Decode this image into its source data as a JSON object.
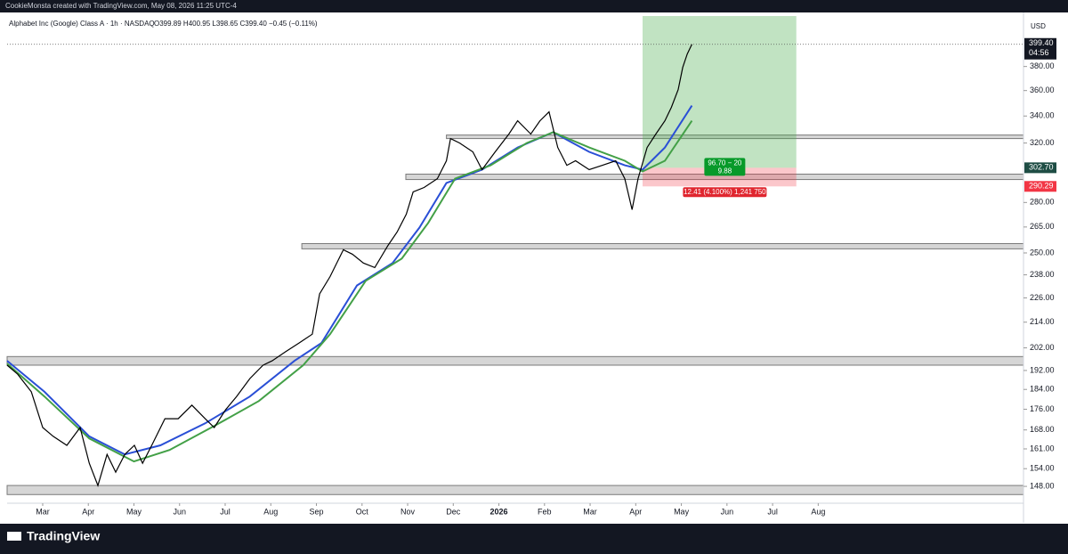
{
  "header": "CookieMonsta created with TradingView.com, May 08, 2026 11:25 UTC-4",
  "footer": "TradingView",
  "chart_data": {
    "type": "line",
    "symbol": "Alphabet Inc (Google) Class A · 1h · NASDAQ",
    "ohlc": "O399.89 H400.95 L398.65 C399.40 −0.45 (−0.11%)",
    "currency": "USD",
    "log_scale": true,
    "xlim": [
      -0.78,
      21.5
    ],
    "xticks": [
      {
        "value": 0,
        "label": "Mar"
      },
      {
        "value": 1,
        "label": "Apr"
      },
      {
        "value": 2,
        "label": "May"
      },
      {
        "value": 3,
        "label": "Jun"
      },
      {
        "value": 4,
        "label": "Jul"
      },
      {
        "value": 5,
        "label": "Aug"
      },
      {
        "value": 6,
        "label": "Sep"
      },
      {
        "value": 7,
        "label": "Oct"
      },
      {
        "value": 8,
        "label": "Nov"
      },
      {
        "value": 9,
        "label": "Dec"
      },
      {
        "value": 10,
        "label": "2026"
      },
      {
        "value": 11,
        "label": "Feb"
      },
      {
        "value": 12,
        "label": "Mar"
      },
      {
        "value": 13,
        "label": "Apr"
      },
      {
        "value": 14,
        "label": "May"
      },
      {
        "value": 15,
        "label": "Jun"
      },
      {
        "value": 16,
        "label": "Jul"
      },
      {
        "value": 17,
        "label": "Aug"
      }
    ],
    "ylim": [
      142.5,
      425.6
    ],
    "yticks": [
      {
        "value": 148,
        "label": "148.00"
      },
      {
        "value": 154,
        "label": "154.00"
      },
      {
        "value": 161,
        "label": "161.00"
      },
      {
        "value": 168,
        "label": "168.00"
      },
      {
        "value": 176,
        "label": "176.00"
      },
      {
        "value": 184,
        "label": "184.00"
      },
      {
        "value": 192,
        "label": "192.00"
      },
      {
        "value": 202,
        "label": "202.00"
      },
      {
        "value": 214,
        "label": "214.00"
      },
      {
        "value": 226,
        "label": "226.00"
      },
      {
        "value": 238,
        "label": "238.00"
      },
      {
        "value": 250,
        "label": "250.00"
      },
      {
        "value": 265,
        "label": "265.00"
      },
      {
        "value": 280,
        "label": "280.00"
      },
      {
        "value": 320,
        "label": "320.00"
      },
      {
        "value": 340,
        "label": "340.00"
      },
      {
        "value": 360,
        "label": "360.00"
      },
      {
        "value": 380,
        "label": "380.00"
      }
    ],
    "series": [
      {
        "color": "#000000",
        "width": 1.2,
        "x": [
          -0.78,
          -0.55,
          -0.25,
          0,
          0.23,
          0.53,
          0.82,
          1.02,
          1.21,
          1.41,
          1.6,
          1.8,
          2.01,
          2.19,
          2.39,
          2.68,
          2.97,
          3.27,
          3.56,
          3.76,
          4.01,
          4.25,
          4.54,
          4.83,
          5.03,
          5.32,
          5.62,
          5.91,
          6.07,
          6.3,
          6.59,
          6.79,
          7.03,
          7.28,
          7.57,
          7.77,
          7.97,
          8.12,
          8.36,
          8.65,
          8.85,
          8.94,
          9.14,
          9.43,
          9.63,
          9.92,
          10.22,
          10.41,
          10.7,
          10.9,
          11.1,
          11.29,
          11.49,
          11.68,
          11.98,
          12.27,
          12.56,
          12.76,
          12.92,
          13.05,
          13.25,
          13.44,
          13.64,
          13.78,
          13.93,
          14.03,
          14.13,
          14.23
        ],
        "values": [
          194.3,
          190.4,
          183.0,
          168.9,
          165.6,
          162.3,
          168.9,
          155.9,
          148.3,
          159.0,
          152.8,
          159.0,
          162.3,
          155.9,
          162.3,
          172.3,
          172.3,
          177.6,
          172.3,
          168.9,
          175.8,
          181.1,
          188.5,
          194.3,
          196.2,
          200.2,
          204.2,
          208.3,
          228.0,
          237.1,
          251.8,
          249.3,
          244.4,
          241.9,
          254.3,
          262.0,
          272.7,
          286.7,
          289.6,
          295.4,
          307.5,
          323.2,
          320.0,
          313.7,
          301.4,
          313.7,
          326.5,
          336.4,
          326.5,
          336.4,
          343.2,
          316.8,
          304.4,
          307.5,
          301.4,
          304.4,
          307.5,
          295.4,
          275.5,
          295.4,
          316.8,
          326.5,
          336.4,
          346.6,
          360.8,
          379.2,
          390.8,
          399.4
        ]
      },
      {
        "color": "#2a4fd6",
        "width": 2,
        "x": [
          -0.78,
          0.04,
          1.02,
          1.8,
          2.58,
          3.56,
          4.54,
          5.52,
          6.11,
          6.89,
          7.67,
          8.26,
          8.85,
          9.63,
          10.41,
          11.19,
          11.98,
          12.76,
          13.15,
          13.64,
          14.23
        ],
        "values": [
          196.2,
          183.0,
          165.6,
          159.0,
          162.3,
          170.5,
          181.1,
          196.2,
          204.2,
          232.4,
          244.4,
          264.7,
          292.5,
          301.4,
          316.8,
          327.8,
          313.7,
          304.4,
          301.4,
          316.8,
          348.0
        ]
      },
      {
        "color": "#43a047",
        "width": 2,
        "x": [
          -0.78,
          0.04,
          1.02,
          2.0,
          2.78,
          3.76,
          4.74,
          5.71,
          6.3,
          7.08,
          7.87,
          8.45,
          9.04,
          9.82,
          10.61,
          11.19,
          11.98,
          12.76,
          13.15,
          13.64,
          14.23
        ],
        "values": [
          195.0,
          181.1,
          164.8,
          156.5,
          160.6,
          169.5,
          179.3,
          194.3,
          208.3,
          234.8,
          246.8,
          267.4,
          295.4,
          304.4,
          320.0,
          327.8,
          316.8,
          307.5,
          300.2,
          307.5,
          336.4
        ]
      }
    ],
    "zones": [
      {
        "start": -0.78,
        "from": 194.3,
        "to": 198.1
      },
      {
        "start": -0.78,
        "from": 145.3,
        "to": 148.3
      },
      {
        "start": 5.68,
        "from": 252.3,
        "to": 255.3
      },
      {
        "start": 7.96,
        "from": 294.8,
        "to": 298.4
      },
      {
        "start": 8.85,
        "from": 323.2,
        "to": 325.8
      }
    ],
    "last_price": {
      "value": 399.4,
      "label": "399.40"
    },
    "countdown": "04:56",
    "position": {
      "start": 13.15,
      "end": 16.52,
      "target": 425.6,
      "entry": {
        "value": 302.7,
        "label": "302.70"
      },
      "stop": {
        "value": 290.29,
        "label": "290.29"
      },
      "reward_label": "96.70 − 20",
      "reward_sub": "9.88",
      "risk_label": "12.41 (4.100%) 1,241 750"
    }
  }
}
